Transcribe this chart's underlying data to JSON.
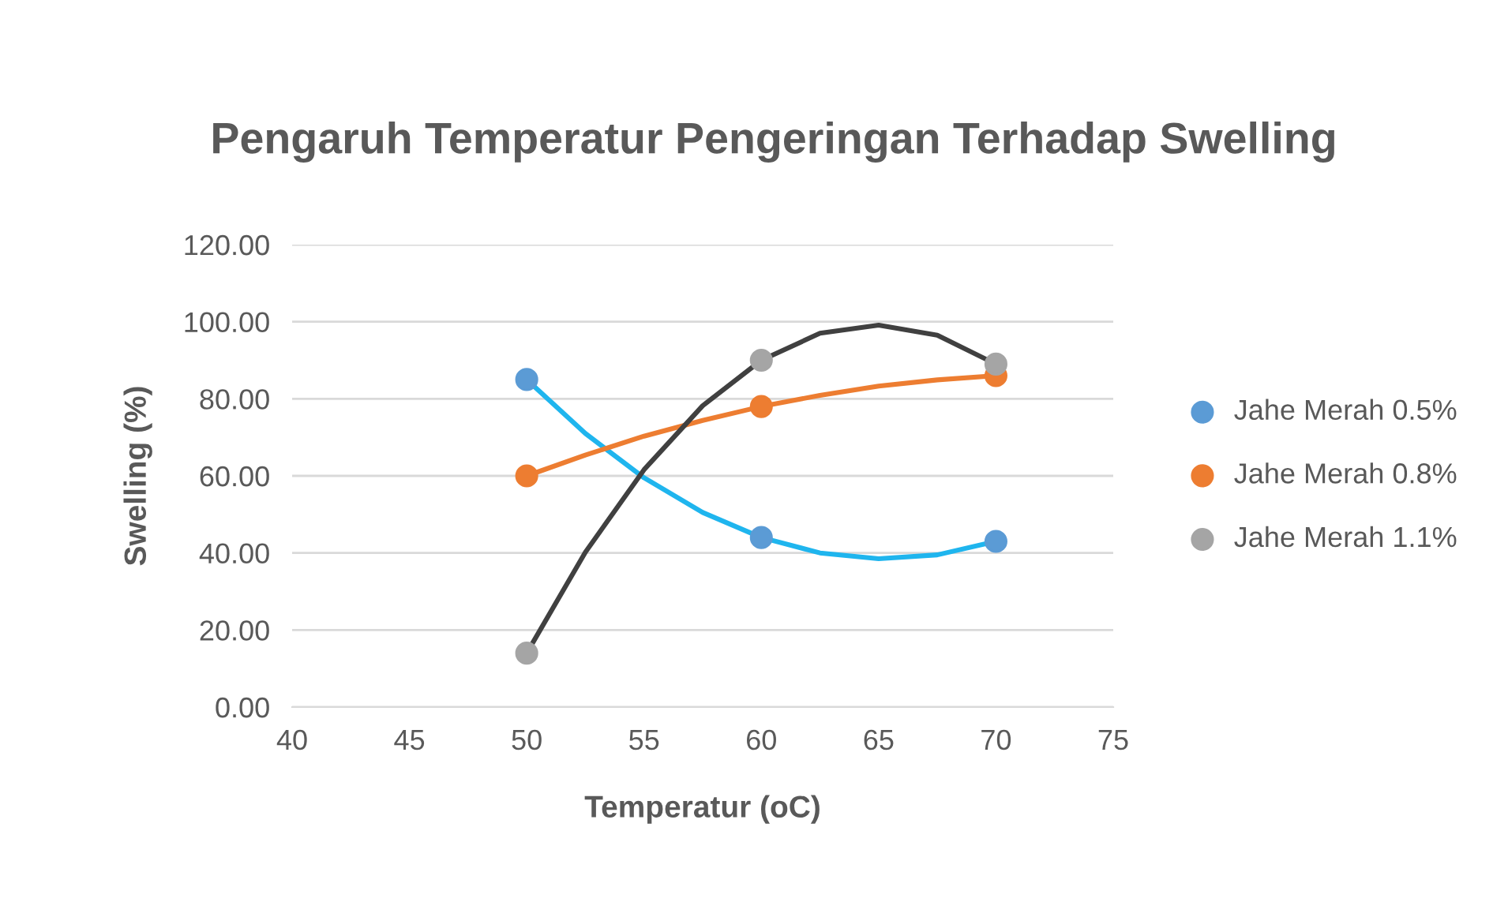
{
  "chart_data": {
    "type": "scatter",
    "title": "Pengaruh Temperatur Pengeringan Terhadap Swelling",
    "xlabel": "Temperatur (oC)",
    "ylabel": "Swelling (%)",
    "xlim": [
      40,
      75
    ],
    "xticks": [
      40,
      45,
      50,
      55,
      60,
      65,
      70,
      75
    ],
    "ylim": [
      0,
      120
    ],
    "yticks": [
      {
        "value": 0,
        "label": "0.00"
      },
      {
        "value": 20,
        "label": "20.00"
      },
      {
        "value": 40,
        "label": "40.00"
      },
      {
        "value": 60,
        "label": "60.00"
      },
      {
        "value": 80,
        "label": "80.00"
      },
      {
        "value": 100,
        "label": "100.00"
      },
      {
        "value": 120,
        "label": "120.00"
      }
    ],
    "grid": "y",
    "legend": "right",
    "marker": "circle",
    "series": [
      {
        "type": "line",
        "color": "#1fb5ee",
        "x": [
          50,
          52.5,
          55,
          57.5,
          60,
          62.5,
          65,
          67.5,
          70
        ],
        "values": [
          85,
          71,
          59.5,
          50.5,
          44,
          40,
          38.5,
          39.5,
          43
        ],
        "marker": "none"
      },
      {
        "type": "line",
        "color": "#ed7d31",
        "x": [
          50,
          52.5,
          55,
          57.5,
          60,
          62.5,
          65,
          67.5,
          70
        ],
        "values": [
          60,
          65.4,
          70.3,
          74.4,
          78,
          80.9,
          83.3,
          84.9,
          86
        ],
        "marker": "none"
      },
      {
        "type": "line",
        "color": "#404040",
        "x": [
          50,
          52.5,
          55,
          57.5,
          60,
          62.5,
          65,
          67.5,
          70
        ],
        "values": [
          14,
          40.2,
          61.6,
          78.2,
          90,
          97,
          99.1,
          96.5,
          89
        ],
        "marker": "none"
      },
      {
        "name": "Jahe Merah 0.5%",
        "color": "#5b9bd5",
        "x": [
          50,
          60,
          70
        ],
        "values": [
          85,
          44,
          43
        ]
      },
      {
        "name": "Jahe Merah 0.8%",
        "color": "#ed7d31",
        "x": [
          50,
          60,
          70
        ],
        "values": [
          60,
          78,
          86
        ]
      },
      {
        "name": "Jahe Merah 1.1%",
        "color": "#a5a5a5",
        "x": [
          50,
          60,
          70
        ],
        "values": [
          14,
          90,
          89
        ]
      }
    ]
  }
}
